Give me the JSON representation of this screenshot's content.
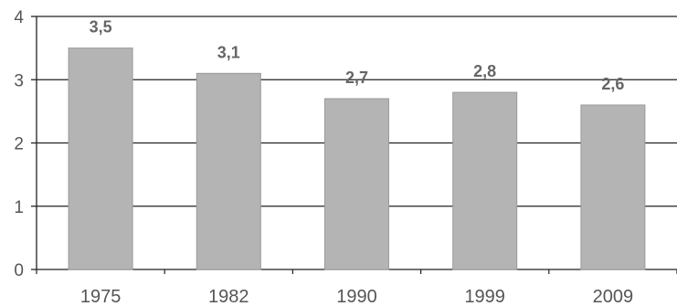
{
  "chart_data": {
    "type": "bar",
    "categories": [
      "1975",
      "1982",
      "1990",
      "1999",
      "2009"
    ],
    "values": [
      3.5,
      3.1,
      2.7,
      2.8,
      2.6
    ],
    "data_labels": [
      "3,5",
      "3,1",
      "2,7",
      "2,8",
      "2,6"
    ],
    "yticks": [
      "0",
      "1",
      "2",
      "3",
      "4"
    ],
    "ylim": [
      0,
      4
    ],
    "grid": true,
    "legend": "none",
    "bar_color": "#b4b4b4",
    "grid_color": "#222222"
  }
}
